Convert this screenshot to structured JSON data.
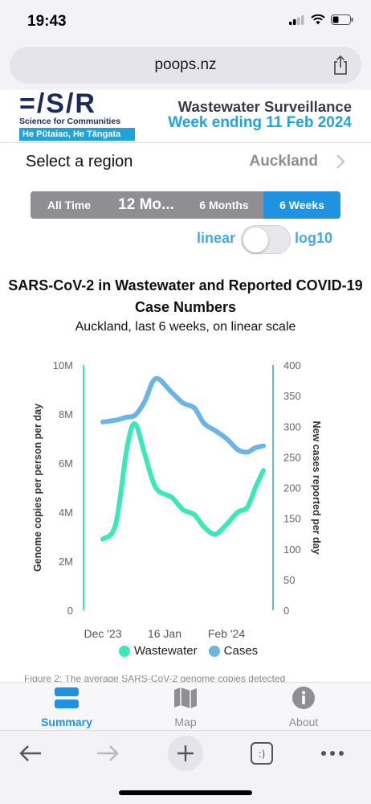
{
  "status": {
    "time": "19:43"
  },
  "browser": {
    "url": "poops.nz"
  },
  "header": {
    "logo_text": "=/S/R",
    "logo_sub": "Science for Communities",
    "logo_maori": "He Pūtaiao, He Tāngata",
    "title": "Wastewater Surveillance",
    "week": "Week ending 11 Feb 2024"
  },
  "region": {
    "label": "Select a region",
    "value": "Auckland"
  },
  "time_ranges": [
    {
      "label": "All Time",
      "active": false
    },
    {
      "label": "12 Mo...",
      "active": false
    },
    {
      "label": "6 Months",
      "active": false
    },
    {
      "label": "6 Weeks",
      "active": true
    }
  ],
  "scale_toggle": {
    "left_label": "linear",
    "right_label": "log10",
    "selected": "linear"
  },
  "chart": {
    "title": "SARS-CoV-2 in Wastewater and Reported COVID-19 Case Numbers",
    "subtitle": "Auckland, last 6 weeks, on linear scale",
    "left_axis_label": "Genome copies per person per day",
    "right_axis_label": "New cases reported per day",
    "left_ticks": [
      "0",
      "2M",
      "4M",
      "6M",
      "8M",
      "10M"
    ],
    "right_ticks": [
      "0",
      "50",
      "100",
      "150",
      "200",
      "250",
      "300",
      "350",
      "400"
    ],
    "x_ticks": [
      "Dec '23",
      "16 Jan",
      "Feb '24"
    ],
    "legend": [
      "Wastewater",
      "Cases"
    ],
    "caption_fragment": "Figure 2: The average SARS-CoV-2 genome copies detected"
  },
  "chart_data": {
    "type": "line",
    "x": [
      0,
      0.08,
      0.15,
      0.2,
      0.26,
      0.33,
      0.43,
      0.5,
      0.57,
      0.63,
      0.7,
      0.77,
      0.84,
      0.9,
      0.95,
      1.0
    ],
    "x_labels": [
      "Dec '23",
      "16 Jan",
      "Feb '24"
    ],
    "series": [
      {
        "name": "Wastewater",
        "axis": "left",
        "color": "#3de8b8",
        "values": [
          2.9,
          3.5,
          6.6,
          7.6,
          6.4,
          5.0,
          4.6,
          4.1,
          3.9,
          3.4,
          3.1,
          3.5,
          4.0,
          4.2,
          5.0,
          5.7
        ]
      },
      {
        "name": "Cases",
        "axis": "right",
        "color": "#6cb4e4",
        "values": [
          307,
          310,
          315,
          318,
          340,
          378,
          355,
          338,
          330,
          305,
          293,
          280,
          262,
          258,
          265,
          268
        ]
      }
    ],
    "ylim_left": [
      0,
      10000000
    ],
    "ylim_right": [
      0,
      400
    ]
  },
  "tabs": [
    {
      "label": "Summary",
      "active": true
    },
    {
      "label": "Map",
      "active": false
    },
    {
      "label": "About",
      "active": false
    }
  ],
  "colors": {
    "accent": "#1f93e0",
    "wastewater": "#3de8b8",
    "cases": "#6cb4e4",
    "logo_blue": "#1fa3d9"
  }
}
